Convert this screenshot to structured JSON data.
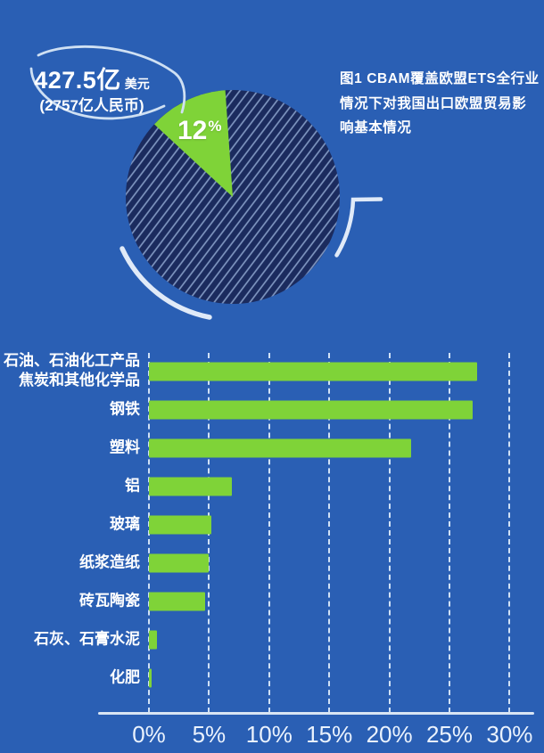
{
  "ui": {
    "callout": {
      "value": "427.5亿",
      "unit": "美元",
      "sub": "(2757亿人民币)"
    },
    "pie_label": {
      "value": "12",
      "unit": "%"
    },
    "title_lines": [
      "图1 CBAM覆盖欧盟ETS全行业",
      "情况下对我国出口欧盟贸易影",
      "响基本情况"
    ]
  },
  "chart_data": [
    {
      "type": "pie",
      "title": "图1 CBAM覆盖欧盟ETS全行业情况下对我国出口欧盟贸易影响基本情况",
      "values": [
        12,
        88
      ],
      "labels": [
        "12%",
        ""
      ],
      "colors": [
        "#7fd338",
        "#1b2b5e"
      ],
      "hatch_color": "#8ea6d0",
      "annotation": "427.5亿美元（2757亿人民币）"
    },
    {
      "type": "bar",
      "orientation": "horizontal",
      "categories": [
        "石油、石油化工产品\n焦炭和其他化学品",
        "钢铁",
        "塑料",
        "铝",
        "玻璃",
        "纸浆造纸",
        "砖瓦陶瓷",
        "石灰、石膏水泥",
        "化肥"
      ],
      "values": [
        27.3,
        26.9,
        21.8,
        6.9,
        5.2,
        5,
        4.7,
        0.7,
        0.2
      ],
      "x_ticks": [
        "0%",
        "5%",
        "10%",
        "15%",
        "20%",
        "25%",
        "30%"
      ],
      "xlim": [
        0,
        30
      ],
      "bar_color": "#7fd338",
      "gridlines": "dashed-vertical"
    }
  ]
}
